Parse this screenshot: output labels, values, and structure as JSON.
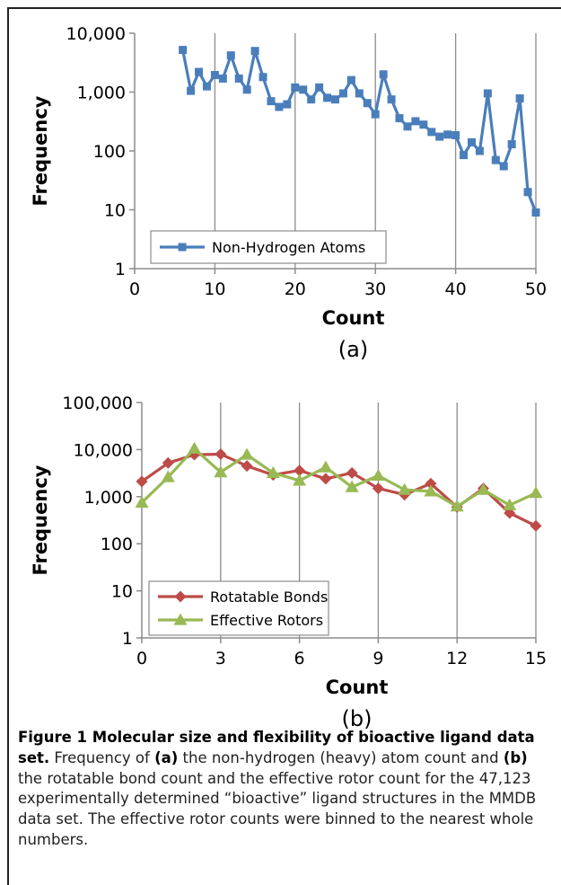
{
  "chart_data": [
    {
      "type": "line",
      "yscale": "log",
      "xlabel": "Count",
      "ylabel": "Frequency",
      "panel_label": "(a)",
      "xlim": [
        0,
        50
      ],
      "ylim": [
        1,
        10000
      ],
      "x_ticks": [
        0,
        10,
        20,
        30,
        40,
        50
      ],
      "y_ticks": [
        1,
        10,
        100,
        1000,
        10000
      ],
      "x_tick_labels": [
        "0",
        "10",
        "20",
        "30",
        "40",
        "50"
      ],
      "y_tick_labels": [
        "1",
        "10",
        "100",
        "1,000",
        "10,000"
      ],
      "grid": "vertical",
      "legend_position": "bottom-left",
      "series": [
        {
          "name": "Non-Hydrogen Atoms",
          "color": "#4a7ebb",
          "marker": "square",
          "x": [
            6,
            7,
            8,
            9,
            10,
            11,
            12,
            13,
            14,
            15,
            16,
            17,
            18,
            19,
            20,
            21,
            22,
            23,
            24,
            25,
            26,
            27,
            28,
            29,
            30,
            31,
            32,
            33,
            34,
            35,
            36,
            37,
            38,
            39,
            40,
            41,
            42,
            43,
            44,
            45,
            46,
            47,
            48,
            49,
            50
          ],
          "values": [
            5200,
            1050,
            2200,
            1250,
            1950,
            1700,
            4200,
            1700,
            1100,
            5000,
            1800,
            700,
            560,
            620,
            1200,
            1100,
            750,
            1200,
            800,
            750,
            950,
            1600,
            950,
            650,
            420,
            2000,
            750,
            360,
            260,
            320,
            280,
            210,
            175,
            190,
            185,
            85,
            140,
            100,
            950,
            70,
            55,
            130,
            780,
            20,
            9
          ]
        }
      ]
    },
    {
      "type": "line",
      "yscale": "log",
      "xlabel": "Count",
      "ylabel": "Frequency",
      "panel_label": "(b)",
      "xlim": [
        0,
        15
      ],
      "ylim": [
        1,
        100000
      ],
      "x_ticks": [
        0,
        3,
        6,
        9,
        12,
        15
      ],
      "y_ticks": [
        1,
        10,
        100,
        1000,
        10000,
        100000
      ],
      "x_tick_labels": [
        "0",
        "3",
        "6",
        "9",
        "12",
        "15"
      ],
      "y_tick_labels": [
        "1",
        "10",
        "100",
        "1,000",
        "10,000",
        "100,000"
      ],
      "grid": "vertical",
      "legend_position": "bottom-left",
      "series": [
        {
          "name": "Rotatable Bonds",
          "color": "#be4b48",
          "marker": "diamond",
          "x": [
            0,
            1,
            2,
            3,
            4,
            5,
            6,
            7,
            8,
            9,
            10,
            11,
            12,
            13,
            14,
            15
          ],
          "values": [
            2100,
            5200,
            7800,
            8000,
            4500,
            2900,
            3600,
            2400,
            3200,
            1500,
            1100,
            1900,
            600,
            1500,
            450,
            240
          ]
        },
        {
          "name": "Effective Rotors",
          "color": "#98b954",
          "marker": "triangle",
          "x": [
            0,
            1,
            2,
            3,
            4,
            5,
            6,
            7,
            8,
            9,
            10,
            11,
            12,
            13,
            14,
            15
          ],
          "values": [
            750,
            2600,
            10500,
            3300,
            7800,
            3200,
            2200,
            4200,
            1600,
            2800,
            1400,
            1300,
            620,
            1400,
            660,
            1200
          ]
        }
      ]
    }
  ],
  "caption": {
    "bold_lead": "Figure 1 Molecular size and flexibility of bioactive ligand data set.",
    "text_1": " Frequency of ",
    "bold_a": "(a)",
    "text_2": " the non-hydrogen (heavy) atom count and ",
    "bold_b": "(b)",
    "text_3": " the rotatable bond count and the effective rotor count for the 47,123 experimentally determined “bioactive” ligand structures in the MMDB data set. The effective rotor counts were binned to the nearest whole numbers."
  }
}
